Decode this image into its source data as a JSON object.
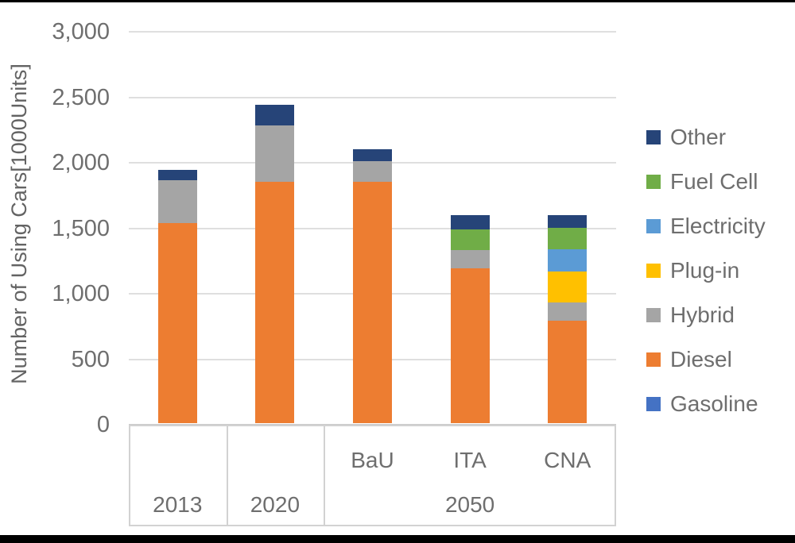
{
  "chart_data": {
    "type": "bar",
    "stacked": true,
    "title": "",
    "ylabel": "Number of Using Cars[1000Units]",
    "xlabel": "",
    "ylim": [
      0,
      3000
    ],
    "grid": "horizontal",
    "legend_position": "right",
    "yticks": [
      {
        "value": 3000,
        "label": "3,000"
      },
      {
        "value": 2500,
        "label": "2,500"
      },
      {
        "value": 2000,
        "label": "2,000"
      },
      {
        "value": 1500,
        "label": "1,500"
      },
      {
        "value": 1000,
        "label": "1,000"
      },
      {
        "value": 500,
        "label": "500"
      },
      {
        "value": 0,
        "label": "0"
      }
    ],
    "categories": [
      "2013",
      "2020",
      "BaU",
      "ITA",
      "CNA"
    ],
    "scenario_row_labels": [
      "",
      "",
      "BaU",
      "ITA",
      "CNA"
    ],
    "year_row_cells": [
      {
        "label": "2013",
        "span": 1
      },
      {
        "label": "2020",
        "span": 1
      },
      {
        "label": "2050",
        "span": 3
      }
    ],
    "series_bottom_to_top": [
      {
        "name": "Gasoline",
        "color": "#4472C4",
        "values": [
          0,
          0,
          0,
          0,
          0
        ]
      },
      {
        "name": "Diesel",
        "color": "#ED7D31",
        "values": [
          1530,
          1840,
          1840,
          1180,
          780
        ]
      },
      {
        "name": "Hybrid",
        "color": "#A5A5A5",
        "values": [
          325,
          430,
          160,
          140,
          140
        ]
      },
      {
        "name": "Plug-in",
        "color": "#FFC000",
        "values": [
          0,
          0,
          0,
          0,
          240
        ]
      },
      {
        "name": "Electricity",
        "color": "#5B9BD5",
        "values": [
          0,
          0,
          0,
          0,
          170
        ]
      },
      {
        "name": "Fuel Cell",
        "color": "#70AD47",
        "values": [
          0,
          0,
          0,
          160,
          160
        ]
      },
      {
        "name": "Other",
        "color": "#264478",
        "values": [
          80,
          160,
          90,
          110,
          100
        ]
      }
    ],
    "totals": [
      1935,
      2430,
      2090,
      1590,
      1590
    ],
    "legend_entries_top_to_bottom": [
      {
        "label": "Other",
        "color": "#264478"
      },
      {
        "label": "Fuel Cell",
        "color": "#70AD47"
      },
      {
        "label": "Electricity",
        "color": "#5B9BD5"
      },
      {
        "label": "Plug-in",
        "color": "#FFC000"
      },
      {
        "label": "Hybrid",
        "color": "#A5A5A5"
      },
      {
        "label": "Diesel",
        "color": "#ED7D31"
      },
      {
        "label": "Gasoline",
        "color": "#4472C4"
      }
    ]
  }
}
